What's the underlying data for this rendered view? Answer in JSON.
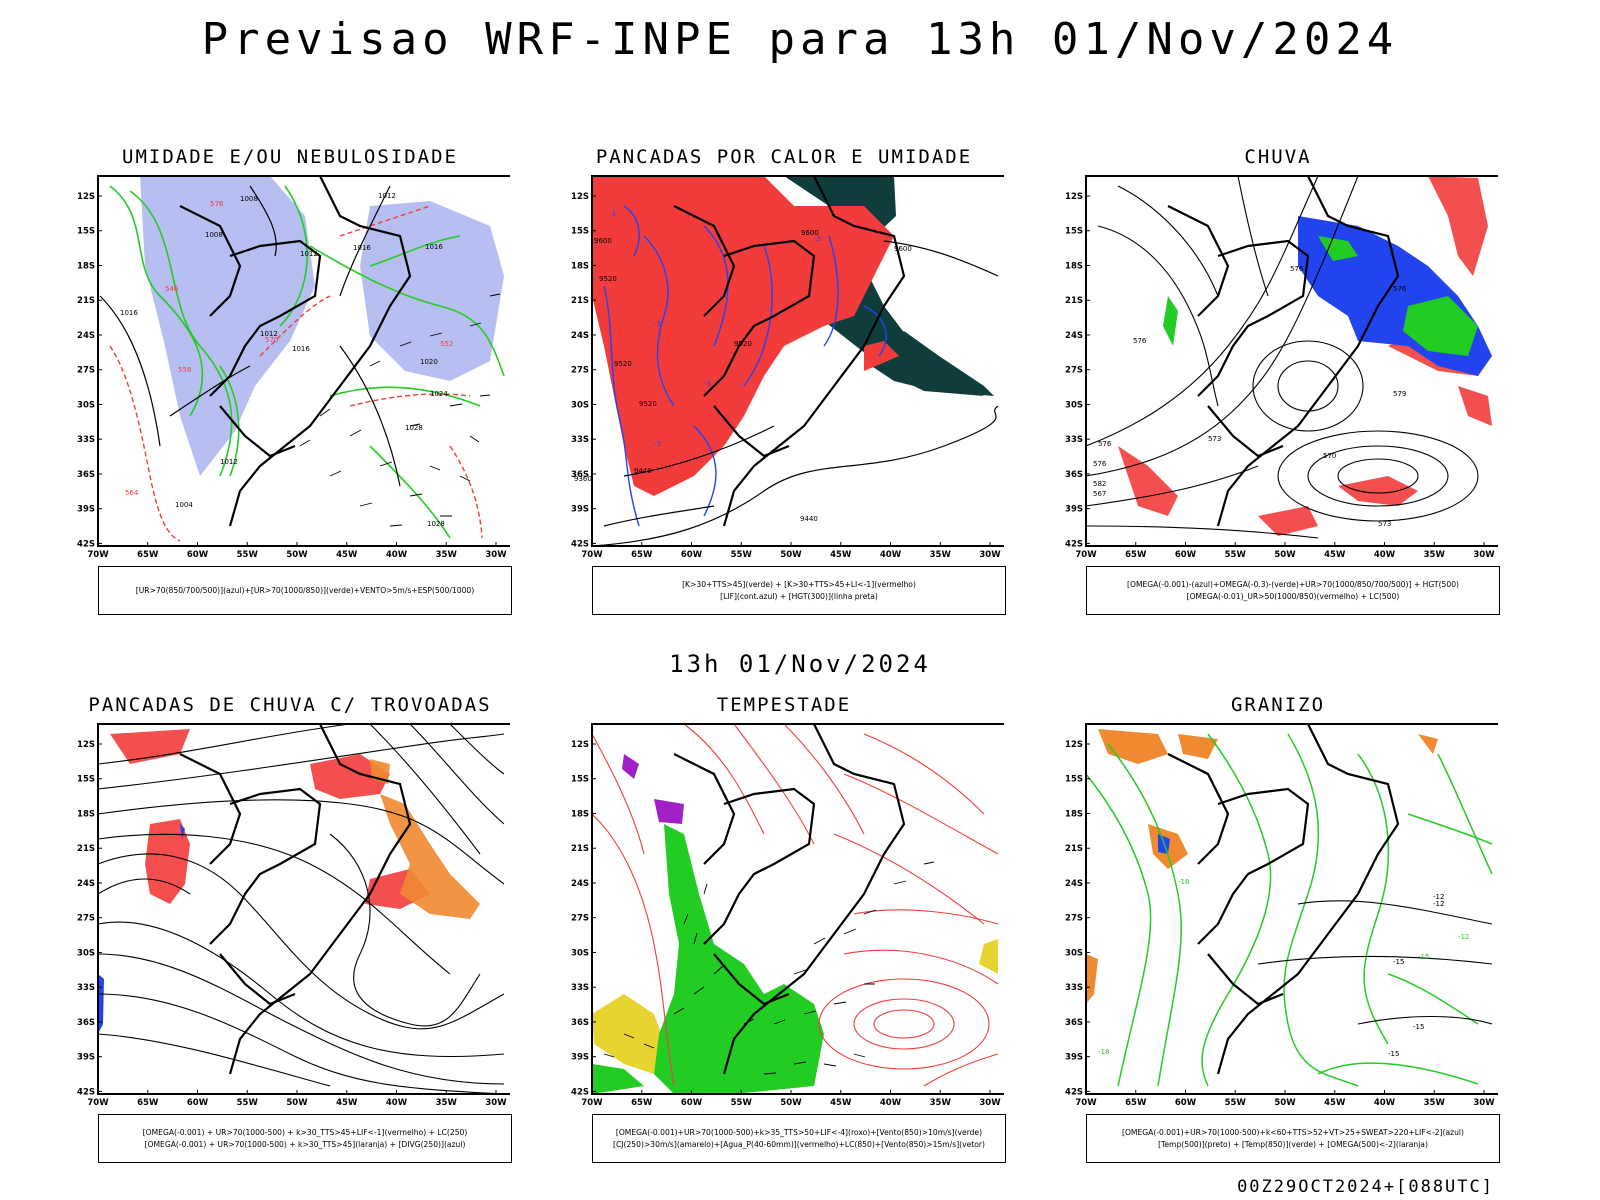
{
  "page": {
    "title": "Previsao WRF-INPE  para 13h 01/Nov/2024",
    "subtitle": "13h 01/Nov/2024",
    "footer": "00Z29OCT2024+[088UTC]"
  },
  "axes": {
    "lat_labels": [
      "12S",
      "15S",
      "18S",
      "21S",
      "24S",
      "27S",
      "30S",
      "33S",
      "36S",
      "39S",
      "42S"
    ],
    "lon_labels": [
      "70W",
      "65W",
      "60W",
      "55W",
      "50W",
      "45W",
      "40W",
      "35W",
      "30W"
    ]
  },
  "colors": {
    "blue_fill": "#aab3ee",
    "red": "#f23c3c",
    "dark_teal": "#0f3d3c",
    "green": "#22cc22",
    "blue": "#2244ee",
    "orange": "#f08a30",
    "yellow": "#e8d430",
    "purple": "#a020c8"
  },
  "panels": [
    {
      "title": "UMIDADE E/OU NEBULOSIDADE",
      "legend": [
        "[UR>70(850/700/500)](azul)+[UR>70(1000/850)](verde)+VENTO>5m/s+ESP(500/1000)"
      ],
      "contour_labels": [
        "1008",
        "1008",
        "1012",
        "1012",
        "1016",
        "1016",
        "1016",
        "1020",
        "1024",
        "1028",
        "1012",
        "1016",
        "1012",
        "1004",
        "1028",
        "576",
        "570",
        "564",
        "558",
        "552",
        "546"
      ]
    },
    {
      "title": "PANCADAS POR CALOR E UMIDADE",
      "legend": [
        "[K>30+TTS>45](verde) + [K>30+TTS>45+LI<-1](vermelho)",
        "[LIF](cont.azul) + [HGT(300)](linha preta)"
      ],
      "contour_labels": [
        "9600",
        "9600",
        "9600",
        "9520",
        "9520",
        "9520",
        "9520",
        "9440",
        "9360",
        "9440",
        "-3",
        "-3",
        "-3",
        "-3",
        "-3"
      ]
    },
    {
      "title": "CHUVA",
      "legend": [
        "[OMEGA(-0.001)-(azul)+OMEGA(-0.3)-(verde)+UR>70(1000/850/700/500)] + HGT(500)",
        "[OMEGA(-0.01)_UR>50(1000/850)(vermelho) + LC(500)"
      ],
      "contour_labels": [
        "576",
        "576",
        "576",
        "579",
        "576",
        "570",
        "573",
        "582",
        "576",
        "567",
        "573"
      ]
    },
    {
      "title": "PANCADAS DE CHUVA C/ TROVOADAS",
      "legend": [
        "[OMEGA(-0.001) + UR>70(1000-500) + k>30_TTS>45+LIF<-1](vermelho) + LC(250)",
        "[OMEGA(-0.001) + UR>70(1000-500) + k>30_TTS>45](laranja) + [DIVG(250)](azul)"
      ],
      "contour_labels": []
    },
    {
      "title": "TEMPESTADE",
      "legend": [
        "[OMEGA(-0.001)+UR>70(1000-500)+k>35_TTS>50+LIF<-4](roxo)+[Vento(850)>10m/s](verde)",
        "[CJ(250)>30m/s](amarelo)+[Agua_P(40-60mm)](vermelho)+LC(850)+[Vento(850)>15m/s](vetor)"
      ],
      "contour_labels": []
    },
    {
      "title": "GRANIZO",
      "legend": [
        "[OMEGA(-0.001)+UR>70(1000-500)+k<60+TTS>52+VT>25+SWEAT>220+LIF<-2](azul)",
        "[Temp(500)](preto) + [Temp(850)](verde) + [OMEGA(500)<-2](laranja)"
      ],
      "contour_labels": [
        "-12",
        "-12",
        "-15",
        "-15",
        "-15",
        "-18",
        "-18",
        "-12",
        "-15"
      ]
    }
  ]
}
